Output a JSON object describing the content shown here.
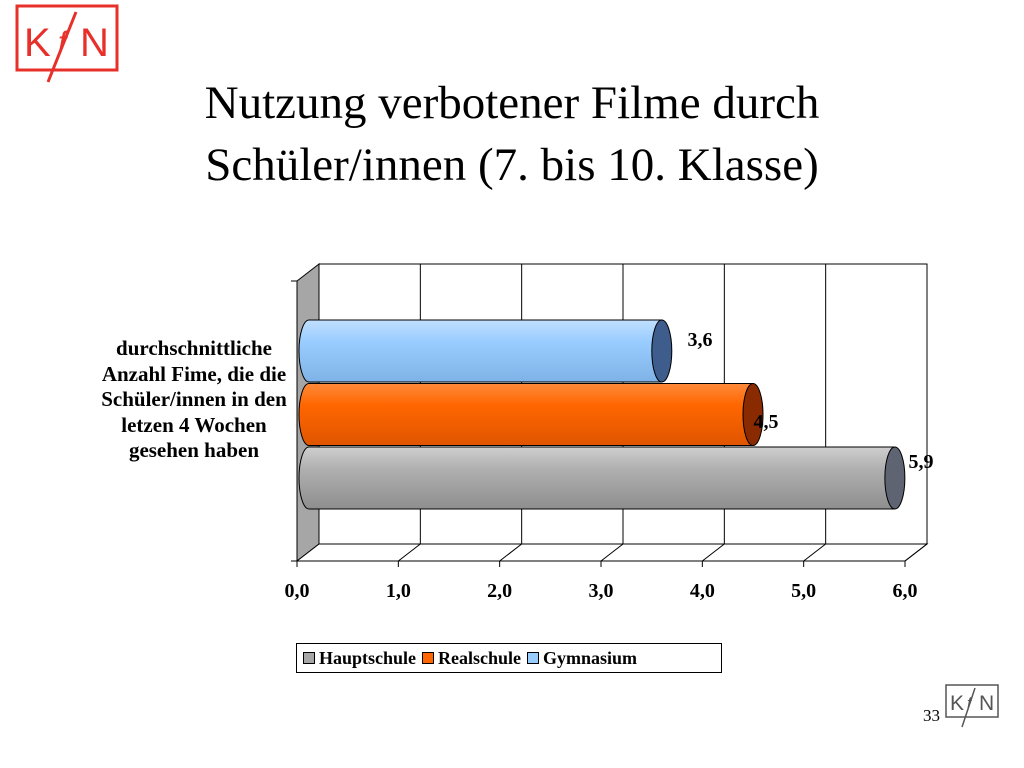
{
  "logo": {
    "text_left": "K",
    "text_mid": "f",
    "text_right": "N"
  },
  "slide": {
    "title_line1": "Nutzung verbotener Filme durch",
    "title_line2": "Schüler/innen (7. bis 10. Klasse)",
    "page_number": "33"
  },
  "chart_data": {
    "type": "bar",
    "orientation": "horizontal",
    "three_d": true,
    "categories": [
      "durchschnittliche Anzahl Fime, die die Schüler/innen in den letzen 4 Wochen gesehen haben"
    ],
    "series": [
      {
        "name": "Hauptschule",
        "values": [
          5.9
        ],
        "color": "#a6a6a6",
        "dark": "#5e6471",
        "label": "5,9"
      },
      {
        "name": "Realschule",
        "values": [
          4.5
        ],
        "color": "#ff6600",
        "dark": "#8a2a00",
        "label": "4,5"
      },
      {
        "name": "Gymnasium",
        "values": [
          3.6
        ],
        "color": "#99ccff",
        "dark": "#3e5c8c",
        "label": "3,6"
      }
    ],
    "xlim": [
      0,
      6
    ],
    "x_ticks": [
      "0,0",
      "1,0",
      "2,0",
      "3,0",
      "4,0",
      "5,0",
      "6,0"
    ],
    "grid": true,
    "legend_position": "bottom"
  },
  "colors": {
    "logo_red": "#e8302a",
    "wall": "#a6a6a6",
    "logo_gray": "#555555"
  }
}
